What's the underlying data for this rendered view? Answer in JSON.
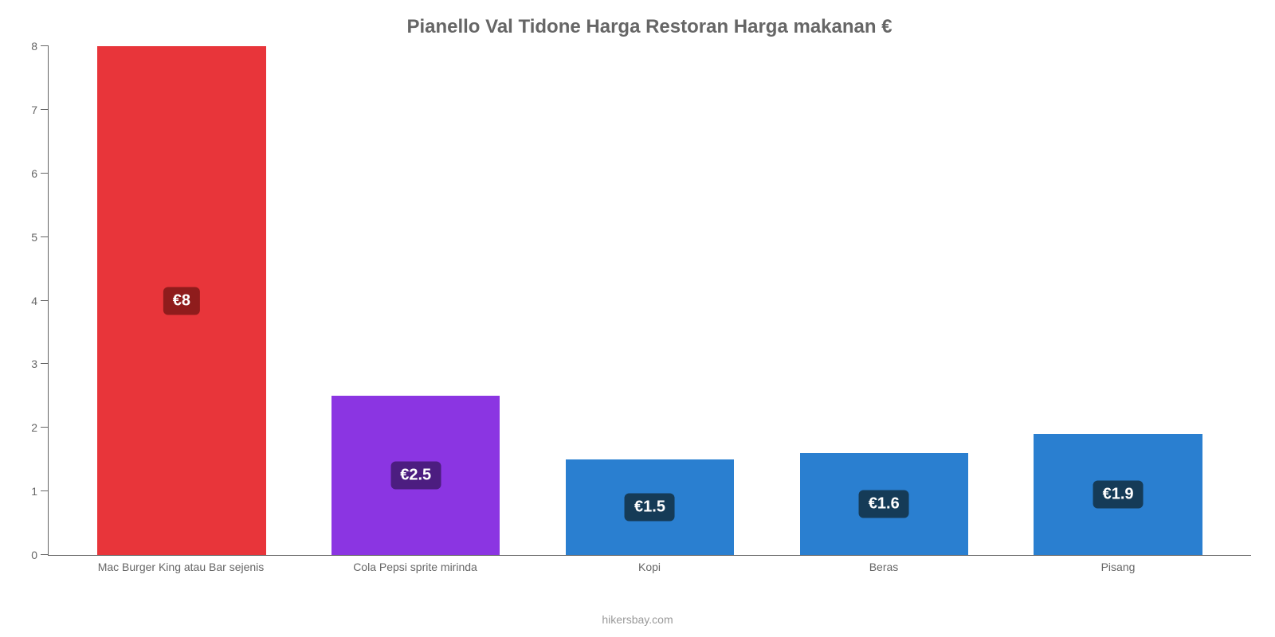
{
  "chart": {
    "type": "bar",
    "title": "Pianello Val Tidone Harga Restoran Harga makanan €",
    "title_fontsize": 24,
    "title_color": "#666666",
    "background_color": "#ffffff",
    "axis_color": "#666666",
    "label_color": "#666666",
    "label_fontsize": 14,
    "ylim_min": 0,
    "ylim_max": 8,
    "ytick_step": 1,
    "yticks": [
      0,
      1,
      2,
      3,
      4,
      5,
      6,
      7,
      8
    ],
    "bar_width_pct": 72,
    "value_label_fontsize": 20,
    "categories": [
      "Mac Burger King atau Bar sejenis",
      "Cola Pepsi sprite mirinda",
      "Kopi",
      "Beras",
      "Pisang"
    ],
    "values": [
      8,
      2.5,
      1.5,
      1.6,
      1.9
    ],
    "value_labels": [
      "€8",
      "€2.5",
      "€1.5",
      "€1.6",
      "€1.9"
    ],
    "bar_colors": [
      "#e8353a",
      "#8b35e2",
      "#2a7fd0",
      "#2a7fd0",
      "#2a7fd0"
    ],
    "badge_colors": [
      "#8f1c1c",
      "#4c1d80",
      "#153b57",
      "#153b57",
      "#153b57"
    ],
    "attribution": "hikersbay.com",
    "attribution_color": "#999999"
  }
}
